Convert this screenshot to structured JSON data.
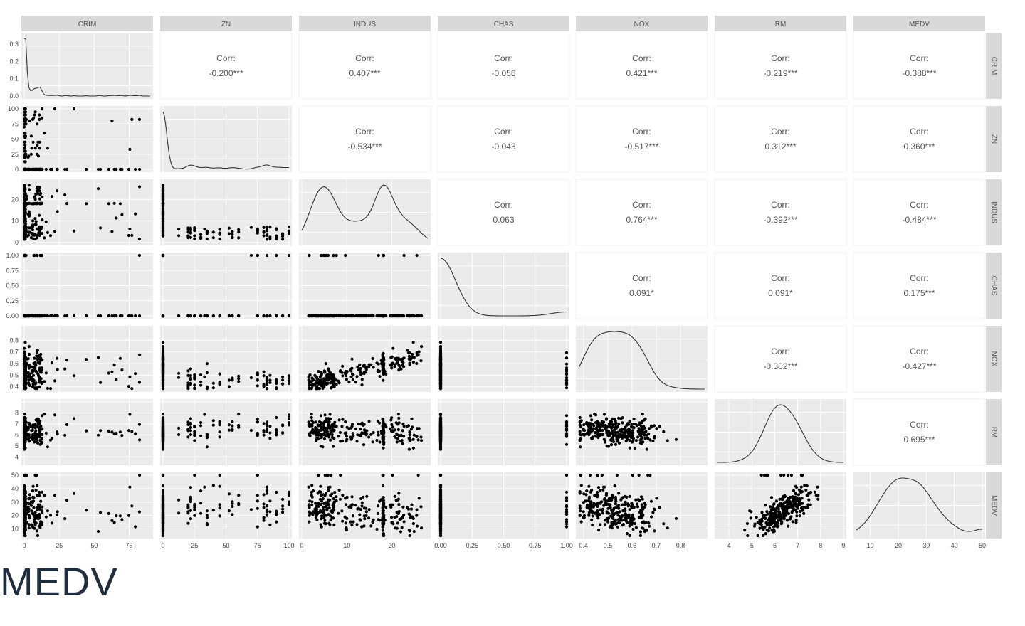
{
  "caption": "MEDV",
  "chart_data": {
    "type": "scatter",
    "variables": [
      "CRIM",
      "ZN",
      "INDUS",
      "CHAS",
      "NOX",
      "RM",
      "MEDV"
    ],
    "correlation_label": "Corr:",
    "correlations": [
      {
        "row": "CRIM",
        "col": "ZN",
        "value": "-0.200***"
      },
      {
        "row": "CRIM",
        "col": "INDUS",
        "value": "0.407***"
      },
      {
        "row": "CRIM",
        "col": "CHAS",
        "value": "-0.056"
      },
      {
        "row": "CRIM",
        "col": "NOX",
        "value": "0.421***"
      },
      {
        "row": "CRIM",
        "col": "RM",
        "value": "-0.219***"
      },
      {
        "row": "CRIM",
        "col": "MEDV",
        "value": "-0.388***"
      },
      {
        "row": "ZN",
        "col": "INDUS",
        "value": "-0.534***"
      },
      {
        "row": "ZN",
        "col": "CHAS",
        "value": "-0.043"
      },
      {
        "row": "ZN",
        "col": "NOX",
        "value": "-0.517***"
      },
      {
        "row": "ZN",
        "col": "RM",
        "value": "0.312***"
      },
      {
        "row": "ZN",
        "col": "MEDV",
        "value": "0.360***"
      },
      {
        "row": "INDUS",
        "col": "CHAS",
        "value": "0.063"
      },
      {
        "row": "INDUS",
        "col": "NOX",
        "value": "0.764***"
      },
      {
        "row": "INDUS",
        "col": "RM",
        "value": "-0.392***"
      },
      {
        "row": "INDUS",
        "col": "MEDV",
        "value": "-0.484***"
      },
      {
        "row": "CHAS",
        "col": "NOX",
        "value": "0.091*"
      },
      {
        "row": "CHAS",
        "col": "RM",
        "value": "0.091*"
      },
      {
        "row": "CHAS",
        "col": "MEDV",
        "value": "0.175***"
      },
      {
        "row": "NOX",
        "col": "RM",
        "value": "-0.302***"
      },
      {
        "row": "NOX",
        "col": "MEDV",
        "value": "-0.427***"
      },
      {
        "row": "RM",
        "col": "MEDV",
        "value": "0.695***"
      }
    ],
    "axes": {
      "CRIM": {
        "range": [
          0,
          90
        ],
        "ticks": [
          0,
          25,
          50,
          75
        ]
      },
      "ZN": {
        "range": [
          0,
          100
        ],
        "ticks": [
          0,
          25,
          50,
          75,
          100
        ]
      },
      "INDUS": {
        "range": [
          0,
          28
        ],
        "ticks": [
          0,
          10,
          20
        ]
      },
      "CHAS": {
        "range": [
          0,
          1
        ],
        "ticks": [
          0,
          0.25,
          0.5,
          0.75,
          1
        ]
      },
      "NOX": {
        "range": [
          0.38,
          0.9
        ],
        "ticks": [
          0.4,
          0.5,
          0.6,
          0.7,
          0.8
        ]
      },
      "RM": {
        "range": [
          3.5,
          9
        ],
        "ticks": [
          4,
          5,
          6,
          7,
          8,
          9
        ]
      },
      "MEDV": {
        "range": [
          5,
          50
        ],
        "ticks": [
          10,
          20,
          30,
          40,
          50
        ]
      }
    },
    "density_y_ticks": {
      "CRIM": [
        0,
        0.1,
        0.2,
        0.3
      ]
    },
    "tick_labels_x": {
      "CRIM": [
        "0",
        "25",
        "50",
        "75"
      ],
      "ZN": [
        "0",
        "25",
        "50",
        "75",
        "100"
      ],
      "INDUS": [
        "0",
        "10",
        "20"
      ],
      "CHAS": [
        "0.00",
        "0.25",
        "0.50",
        "0.75",
        "1.00"
      ],
      "NOX": [
        "0.4",
        "0.5",
        "0.6",
        "0.7",
        "0.8"
      ],
      "RM": [
        "4",
        "5",
        "6",
        "7",
        "8",
        "9"
      ],
      "MEDV": [
        "10",
        "20",
        "30",
        "40",
        "50"
      ]
    },
    "tick_labels_y": {
      "CRIM": [
        "0.0",
        "0.1",
        "0.2",
        "0.3"
      ],
      "ZN": [
        "0",
        "25",
        "50",
        "75",
        "100"
      ],
      "INDUS": [
        "0",
        "10",
        "20"
      ],
      "CHAS": [
        "0.00",
        "0.25",
        "0.50",
        "0.75",
        "1.00"
      ],
      "NOX": [
        "0.4",
        "0.5",
        "0.6",
        "0.7",
        "0.8"
      ],
      "RM": [
        "4",
        "5",
        "6",
        "7",
        "8"
      ],
      "MEDV": [
        "10",
        "20",
        "30",
        "40",
        "50"
      ]
    },
    "grid": true,
    "legend": "none",
    "colors": {
      "panel_bg": "#ebebeb",
      "strip_bg": "#d9d9d9",
      "points": "#000000",
      "density_line": "#333333"
    }
  }
}
